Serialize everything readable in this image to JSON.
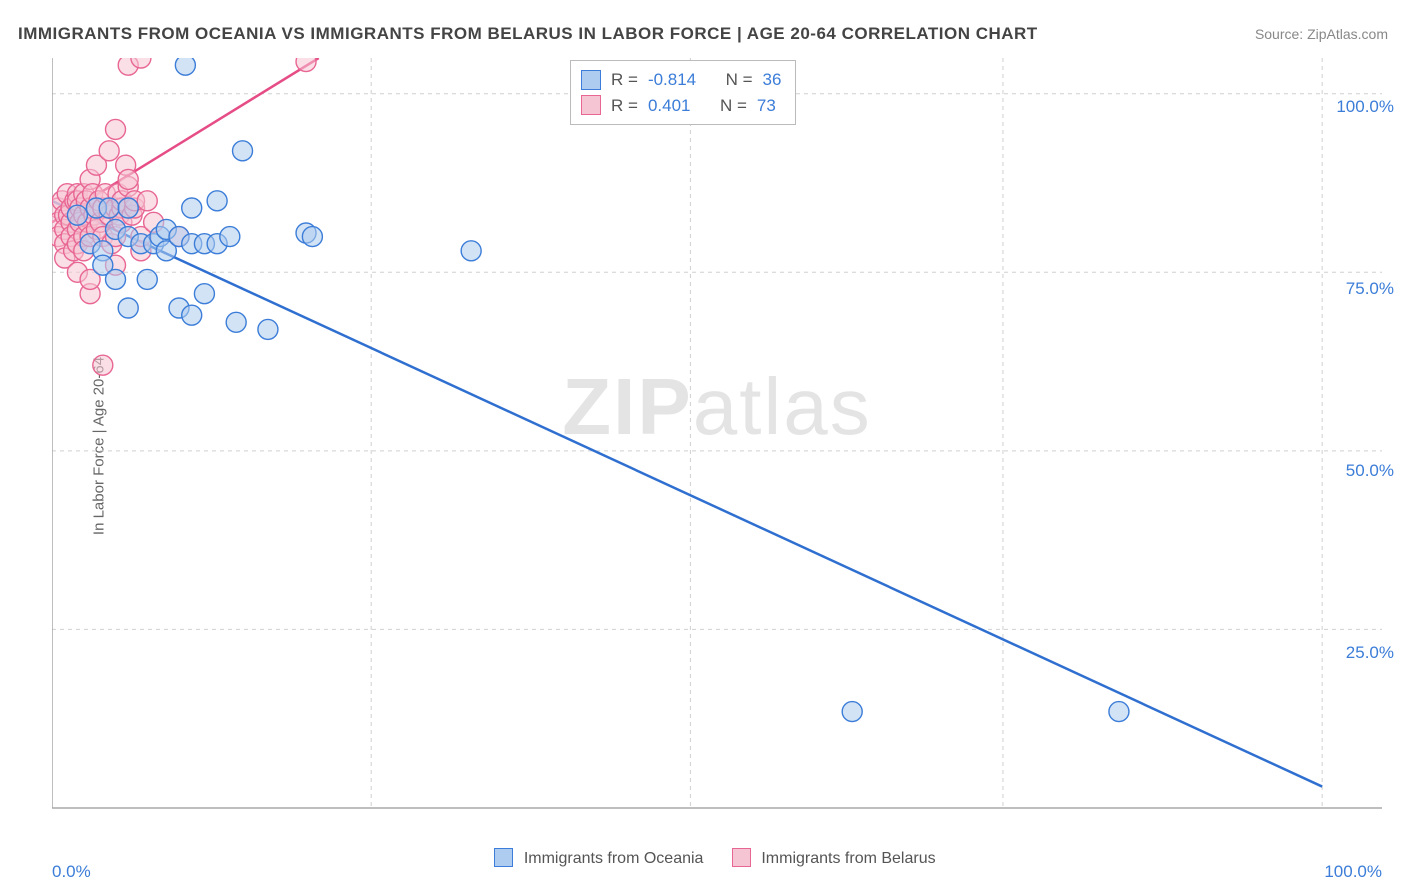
{
  "title": "IMMIGRANTS FROM OCEANIA VS IMMIGRANTS FROM BELARUS IN LABOR FORCE | AGE 20-64 CORRELATION CHART",
  "source_label": "Source: ZipAtlas.com",
  "ylabel": "In Labor Force | Age 20-64",
  "watermark_a": "ZIP",
  "watermark_b": "atlas",
  "chart": {
    "type": "scatter",
    "xlim": [
      0,
      100
    ],
    "ylim": [
      0,
      105
    ],
    "x_tick_labels": [
      "0.0%",
      "100.0%"
    ],
    "y_ticks": [
      25,
      50,
      75,
      100
    ],
    "y_tick_labels": [
      "25.0%",
      "50.0%",
      "75.0%",
      "100.0%"
    ],
    "y_grid_positions_pct": [
      78.5,
      54.5,
      30.5,
      6.5
    ],
    "x_vgrid_positions_pct": [
      0,
      24,
      48,
      71.5,
      95.5
    ],
    "grid_color": "#d0d0d0",
    "grid_dash": "4 4",
    "axis_color": "#a8a8a8",
    "series": [
      {
        "name": "Immigrants from Oceania",
        "marker_fill": "#aeccef",
        "marker_stroke": "#3b7dd8",
        "marker_fill_opacity": 0.55,
        "marker_radius": 10,
        "trend_color": "#2f6fd0",
        "trend_width": 2.5,
        "trend": {
          "x1": 0,
          "y1": 85,
          "x2": 100,
          "y2": 3
        },
        "R": "-0.814",
        "N": "36",
        "points": [
          [
            2,
            83
          ],
          [
            3,
            79
          ],
          [
            3.5,
            84
          ],
          [
            4,
            78
          ],
          [
            4,
            76
          ],
          [
            4.5,
            84
          ],
          [
            5,
            74
          ],
          [
            5,
            81
          ],
          [
            6,
            80
          ],
          [
            6,
            70
          ],
          [
            6,
            84
          ],
          [
            7,
            79
          ],
          [
            7.5,
            74
          ],
          [
            8,
            79
          ],
          [
            8.5,
            80
          ],
          [
            9,
            81
          ],
          [
            9,
            78
          ],
          [
            10,
            70
          ],
          [
            10,
            80
          ],
          [
            10.5,
            104
          ],
          [
            11,
            79
          ],
          [
            11,
            84
          ],
          [
            11,
            69
          ],
          [
            12,
            72
          ],
          [
            12,
            79
          ],
          [
            13,
            79
          ],
          [
            13,
            85
          ],
          [
            14,
            80
          ],
          [
            14.5,
            68
          ],
          [
            15,
            92
          ],
          [
            17,
            67
          ],
          [
            20,
            80.5
          ],
          [
            20.5,
            80
          ],
          [
            33,
            78
          ],
          [
            63,
            13.5
          ],
          [
            84,
            13.5
          ]
        ]
      },
      {
        "name": "Immigrants from Belarus",
        "marker_fill": "#f6c5d3",
        "marker_stroke": "#e86693",
        "marker_fill_opacity": 0.55,
        "marker_radius": 10,
        "trend_color": "#e64d86",
        "trend_width": 2.5,
        "trend": {
          "x1": 0,
          "y1": 82,
          "x2": 21,
          "y2": 105
        },
        "R": "0.401",
        "N": "73",
        "points": [
          [
            0.5,
            84
          ],
          [
            0.5,
            82
          ],
          [
            0.5,
            80
          ],
          [
            0.8,
            85
          ],
          [
            1,
            83
          ],
          [
            1,
            81
          ],
          [
            1,
            79
          ],
          [
            1,
            77
          ],
          [
            1.2,
            86
          ],
          [
            1.3,
            83
          ],
          [
            1.5,
            82
          ],
          [
            1.5,
            84
          ],
          [
            1.5,
            80
          ],
          [
            1.7,
            78
          ],
          [
            1.8,
            85
          ],
          [
            2,
            83
          ],
          [
            2,
            81
          ],
          [
            2,
            79
          ],
          [
            2,
            86
          ],
          [
            2,
            85
          ],
          [
            2,
            75
          ],
          [
            2.2,
            84
          ],
          [
            2.2,
            82
          ],
          [
            2.5,
            83
          ],
          [
            2.5,
            86
          ],
          [
            2.5,
            80
          ],
          [
            2.5,
            78
          ],
          [
            2.7,
            85
          ],
          [
            2.8,
            82
          ],
          [
            3,
            84
          ],
          [
            3,
            88
          ],
          [
            3,
            80
          ],
          [
            3,
            72
          ],
          [
            3,
            74
          ],
          [
            3.2,
            86
          ],
          [
            3.3,
            83
          ],
          [
            3.5,
            84
          ],
          [
            3.5,
            81
          ],
          [
            3.5,
            90
          ],
          [
            3.7,
            85
          ],
          [
            3.8,
            82
          ],
          [
            4,
            84
          ],
          [
            4,
            80
          ],
          [
            4,
            62
          ],
          [
            4.2,
            86
          ],
          [
            4.5,
            92
          ],
          [
            4.5,
            83
          ],
          [
            4.5,
            84
          ],
          [
            4.7,
            79
          ],
          [
            5,
            95
          ],
          [
            5,
            84
          ],
          [
            5,
            80
          ],
          [
            5,
            76
          ],
          [
            5.2,
            86
          ],
          [
            5.3,
            83
          ],
          [
            5.5,
            84
          ],
          [
            5.5,
            85
          ],
          [
            5.5,
            82
          ],
          [
            5.8,
            90
          ],
          [
            6,
            104
          ],
          [
            6,
            84
          ],
          [
            6,
            87
          ],
          [
            6,
            88
          ],
          [
            6.3,
            83
          ],
          [
            6.5,
            84
          ],
          [
            6.5,
            85
          ],
          [
            7,
            105
          ],
          [
            7,
            78
          ],
          [
            7,
            80
          ],
          [
            7.5,
            85
          ],
          [
            8,
            82
          ],
          [
            10,
            80
          ],
          [
            20,
            104.5
          ]
        ]
      }
    ]
  },
  "legend_bottom": [
    {
      "swatch_fill": "#aeccef",
      "swatch_stroke": "#3b7dd8",
      "label": "Immigrants from Oceania"
    },
    {
      "swatch_fill": "#f6c5d3",
      "swatch_stroke": "#e86693",
      "label": "Immigrants from Belarus"
    }
  ],
  "legend_box_labels": {
    "R": "R =",
    "N": "N ="
  }
}
